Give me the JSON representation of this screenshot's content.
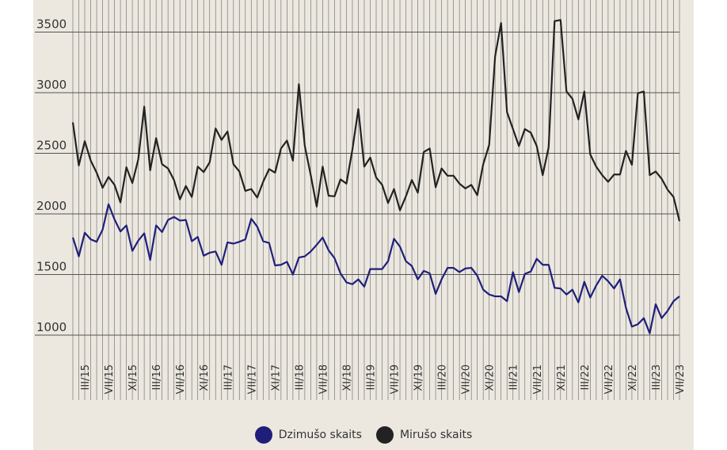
{
  "chart_data": {
    "type": "line",
    "y_ticks": [
      1000,
      1500,
      2000,
      2500,
      3000,
      3500
    ],
    "ylim": [
      800,
      3650
    ],
    "x_tick_labels": [
      "III/15",
      "VII/15",
      "XI/15",
      "III/16",
      "VII/16",
      "XI/16",
      "III/17",
      "VII/17",
      "XI/17",
      "III/18",
      "VII/18",
      "XI/18",
      "III/19",
      "VII/19",
      "XI/19",
      "III/20",
      "VII/20",
      "XI/20",
      "III/21",
      "VII/21",
      "XI/21",
      "III/22",
      "VII/22",
      "XI/22",
      "III/23",
      "VII/23"
    ],
    "x_start": "I/15",
    "x_end": "VII/23",
    "grid": true,
    "legend_position": "bottom-center",
    "series": [
      {
        "name": "Dzimušo skaits",
        "color": "#1f1f7a",
        "values": [
          1805,
          1650,
          1845,
          1790,
          1770,
          1870,
          2080,
          1955,
          1855,
          1905,
          1695,
          1780,
          1840,
          1620,
          1905,
          1850,
          1950,
          1975,
          1945,
          1950,
          1775,
          1810,
          1655,
          1680,
          1690,
          1580,
          1765,
          1755,
          1770,
          1790,
          1960,
          1895,
          1775,
          1760,
          1575,
          1580,
          1605,
          1500,
          1640,
          1650,
          1690,
          1745,
          1805,
          1700,
          1635,
          1510,
          1435,
          1420,
          1460,
          1400,
          1545,
          1545,
          1545,
          1610,
          1795,
          1730,
          1610,
          1570,
          1460,
          1530,
          1510,
          1340,
          1460,
          1555,
          1555,
          1520,
          1550,
          1555,
          1490,
          1375,
          1335,
          1320,
          1320,
          1280,
          1520,
          1355,
          1505,
          1525,
          1630,
          1580,
          1580,
          1390,
          1385,
          1335,
          1375,
          1270,
          1440,
          1310,
          1410,
          1490,
          1445,
          1385,
          1460,
          1225,
          1070,
          1090,
          1140,
          1015,
          1255,
          1140,
          1200,
          1280,
          1320
        ]
      },
      {
        "name": "Mirušo skaits",
        "color": "#222222",
        "values": [
          2755,
          2400,
          2600,
          2440,
          2340,
          2215,
          2305,
          2240,
          2095,
          2385,
          2255,
          2450,
          2885,
          2360,
          2625,
          2410,
          2375,
          2280,
          2120,
          2230,
          2140,
          2390,
          2345,
          2425,
          2705,
          2610,
          2680,
          2410,
          2350,
          2190,
          2205,
          2135,
          2265,
          2370,
          2340,
          2540,
          2605,
          2440,
          3070,
          2560,
          2320,
          2060,
          2390,
          2150,
          2145,
          2285,
          2250,
          2530,
          2865,
          2390,
          2465,
          2300,
          2240,
          2090,
          2205,
          2030,
          2145,
          2280,
          2175,
          2510,
          2540,
          2220,
          2375,
          2315,
          2315,
          2250,
          2210,
          2240,
          2155,
          2410,
          2570,
          3300,
          3575,
          2840,
          2700,
          2560,
          2700,
          2670,
          2560,
          2320,
          2550,
          3590,
          3600,
          3010,
          2950,
          2780,
          3010,
          2490,
          2390,
          2320,
          2265,
          2325,
          2325,
          2520,
          2405,
          2995,
          3010,
          2320,
          2350,
          2290,
          2200,
          2140,
          1940
        ]
      }
    ]
  }
}
